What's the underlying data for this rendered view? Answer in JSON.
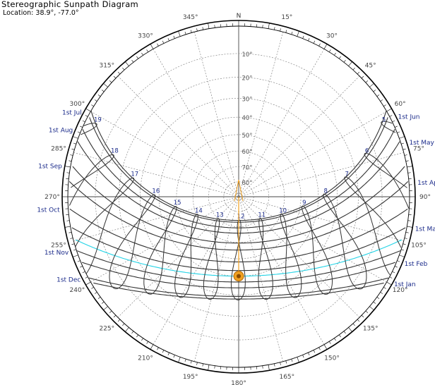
{
  "header": {
    "title": "Stereographic  Sunpath Diagram",
    "location": "Location: 38.9°, -77.0°"
  },
  "north_label": "N",
  "azimuth_labels": [
    {
      "deg": 15,
      "text": "15°"
    },
    {
      "deg": 30,
      "text": "30°"
    },
    {
      "deg": 45,
      "text": "45°"
    },
    {
      "deg": 60,
      "text": "60°"
    },
    {
      "deg": 75,
      "text": "75°"
    },
    {
      "deg": 90,
      "text": "90°"
    },
    {
      "deg": 105,
      "text": "105°"
    },
    {
      "deg": 120,
      "text": "120°"
    },
    {
      "deg": 135,
      "text": "135°"
    },
    {
      "deg": 150,
      "text": "150°"
    },
    {
      "deg": 165,
      "text": "165°"
    },
    {
      "deg": 180,
      "text": "180°"
    },
    {
      "deg": 195,
      "text": "195°"
    },
    {
      "deg": 210,
      "text": "210°"
    },
    {
      "deg": 225,
      "text": "225°"
    },
    {
      "deg": 240,
      "text": "240°"
    },
    {
      "deg": 255,
      "text": "255°"
    },
    {
      "deg": 270,
      "text": "270°"
    },
    {
      "deg": 285,
      "text": "285°"
    },
    {
      "deg": 300,
      "text": "300°"
    },
    {
      "deg": 315,
      "text": "315°"
    },
    {
      "deg": 330,
      "text": "330°"
    },
    {
      "deg": 345,
      "text": "345°"
    }
  ],
  "altitude_labels": [
    {
      "alt": 10,
      "text": "10°"
    },
    {
      "alt": 20,
      "text": "20°"
    },
    {
      "alt": 30,
      "text": "30°"
    },
    {
      "alt": 40,
      "text": "40°"
    },
    {
      "alt": 50,
      "text": "50°"
    },
    {
      "alt": 60,
      "text": "60°"
    },
    {
      "alt": 70,
      "text": "70°"
    },
    {
      "alt": 80,
      "text": "80°"
    }
  ],
  "date_labels": [
    {
      "text": "1st Jul",
      "side": "left",
      "month": 7
    },
    {
      "text": "1st Aug",
      "side": "left",
      "month": 8
    },
    {
      "text": "1st Sep",
      "side": "left",
      "month": 9
    },
    {
      "text": "1st Oct",
      "side": "left",
      "month": 10
    },
    {
      "text": "1st Nov",
      "side": "left",
      "month": 11
    },
    {
      "text": "1st Dec",
      "side": "left",
      "month": 12
    },
    {
      "text": "1st Jun",
      "side": "right",
      "month": 6
    },
    {
      "text": "1st May",
      "side": "right",
      "month": 5
    },
    {
      "text": "1st Apr",
      "side": "right",
      "month": 4
    },
    {
      "text": "1st Mar",
      "side": "right",
      "month": 3
    },
    {
      "text": "1st Feb",
      "side": "right",
      "month": 2
    },
    {
      "text": "1st Jan",
      "side": "right",
      "month": 1
    }
  ],
  "hour_labels": [
    "5",
    "6",
    "7",
    "8",
    "9",
    "10",
    "11",
    "12",
    "13",
    "14",
    "15",
    "16",
    "17",
    "18",
    "19"
  ],
  "colors": {
    "grid": "#555555",
    "sunpath": "#333333",
    "current_day": "#22d3e6",
    "sun_marker": "#f0a020",
    "date_label": "#1a2a8a"
  }
}
